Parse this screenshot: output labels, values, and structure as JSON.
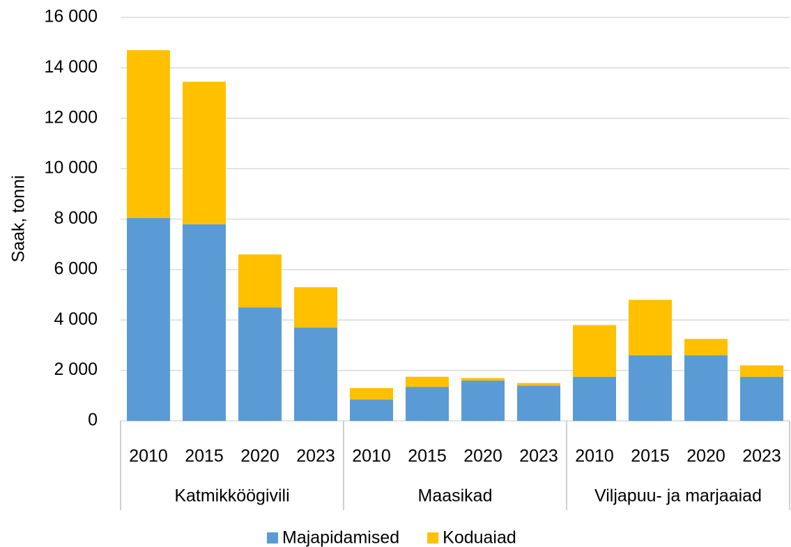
{
  "chart_data": {
    "type": "stacked_bar",
    "y_label": "Saak, tonni",
    "categories": [
      "2010",
      "2015",
      "2020",
      "2023",
      "2010",
      "2015",
      "2020",
      "2023",
      "2010",
      "2015",
      "2020",
      "2023"
    ],
    "groups": [
      "Katmikköögivili",
      "Maasikad",
      "Viljapuu- ja marjaaiad"
    ],
    "series": [
      {
        "name": "Majapidamised",
        "color": "#5b9bd5",
        "values": [
          8050,
          7800,
          4500,
          3700,
          850,
          1350,
          1600,
          1400,
          1750,
          2600,
          2600,
          1750
        ]
      },
      {
        "name": "Koduaiad",
        "color": "#ffc000",
        "values": [
          6650,
          5650,
          2100,
          1600,
          450,
          400,
          100,
          100,
          2050,
          2200,
          650,
          450
        ]
      }
    ],
    "ylim": [
      0,
      16000
    ],
    "yticks": [
      0,
      {
        "value": 2000,
        "label": "2 000"
      },
      {
        "value": 4000,
        "label": "4 000"
      },
      {
        "value": 6000,
        "label": "6 000"
      },
      {
        "value": 8000,
        "label": "8 000"
      },
      {
        "value": 10000,
        "label": "10 000"
      },
      {
        "value": 12000,
        "label": "12 000"
      },
      {
        "value": 14000,
        "label": "14 000"
      },
      {
        "value": 16000,
        "label": "16 000"
      }
    ],
    "grid": true,
    "legend": "bottom"
  }
}
